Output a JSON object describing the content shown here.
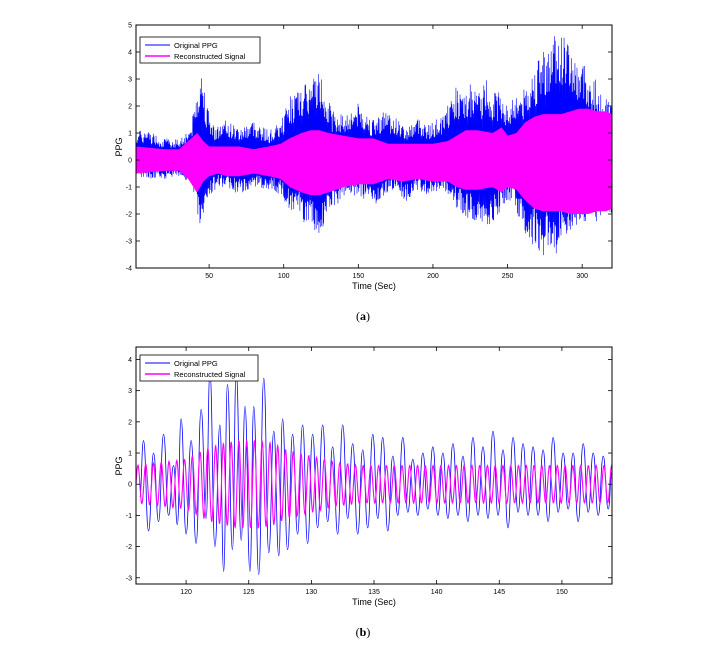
{
  "chart_data": [
    {
      "type": "line",
      "caption_letter": "a",
      "xlabel": "Time (Sec)",
      "ylabel": "PPG",
      "xlim": [
        1,
        320
      ],
      "ylim": [
        -4,
        5
      ],
      "xticks": [
        50,
        100,
        150,
        200,
        250,
        300
      ],
      "yticks": [
        -4,
        -3,
        -2,
        -1,
        0,
        1,
        2,
        3,
        4,
        5
      ],
      "grid": false,
      "legend_position": "top-left",
      "series": [
        {
          "name": "Original PPG",
          "color": "#0000ff",
          "envelope_time": [
            1,
            10,
            20,
            30,
            38,
            42,
            44,
            46,
            48,
            52,
            56,
            62,
            70,
            80,
            90,
            98,
            104,
            110,
            114,
            118,
            122,
            126,
            132,
            140,
            150,
            160,
            168,
            175,
            182,
            190,
            198,
            206,
            212,
            216,
            220,
            226,
            232,
            236,
            240,
            246,
            250,
            254,
            258,
            262,
            266,
            270,
            274,
            278,
            282,
            286,
            290,
            294,
            298,
            302,
            306,
            310,
            314,
            320
          ],
          "upper": [
            1.1,
            1.1,
            0.8,
            0.8,
            1.3,
            2.7,
            3.5,
            3.2,
            2.2,
            1.4,
            1.3,
            1.5,
            1.2,
            1.5,
            1.1,
            1.4,
            2.4,
            2.6,
            2.8,
            2.9,
            3.4,
            3.1,
            1.9,
            1.7,
            2.1,
            1.5,
            1.9,
            1.6,
            1.2,
            1.6,
            1.3,
            1.7,
            2.2,
            2.8,
            2.3,
            2.9,
            2.5,
            3.1,
            2.5,
            2.6,
            1.9,
            2.5,
            2.5,
            2.8,
            3.2,
            3.6,
            4.2,
            4.0,
            5.0,
            4.6,
            4.6,
            3.9,
            3.5,
            3.7,
            2.8,
            3.1,
            2.5,
            2.2
          ],
          "lower": [
            -0.6,
            -0.7,
            -0.7,
            -0.6,
            -0.9,
            -1.9,
            -2.6,
            -2.3,
            -1.6,
            -1.2,
            -1.0,
            -1.0,
            -1.3,
            -1.0,
            -1.1,
            -1.3,
            -2.0,
            -2.1,
            -2.4,
            -2.7,
            -2.9,
            -2.6,
            -1.8,
            -1.5,
            -1.3,
            -1.8,
            -1.4,
            -1.0,
            -1.6,
            -1.1,
            -1.4,
            -1.1,
            -1.5,
            -1.8,
            -2.0,
            -2.3,
            -2.2,
            -2.5,
            -2.3,
            -1.9,
            -1.6,
            -1.4,
            -2.4,
            -2.8,
            -3.1,
            -3.3,
            -3.6,
            -3.3,
            -3.5,
            -3.2,
            -2.9,
            -2.6,
            -2.3,
            -2.3,
            -2.1,
            -2.4,
            -2.1,
            -2.0
          ]
        },
        {
          "name": "Reconstructed Signal",
          "color": "#ff00ff",
          "envelope_time": [
            1,
            20,
            30,
            36,
            42,
            46,
            50,
            56,
            62,
            70,
            80,
            90,
            98,
            104,
            112,
            118,
            124,
            130,
            140,
            150,
            160,
            170,
            180,
            190,
            200,
            210,
            216,
            222,
            230,
            240,
            246,
            250,
            256,
            262,
            268,
            274,
            280,
            286,
            292,
            298,
            304,
            310,
            316,
            320
          ],
          "upper": [
            0.5,
            0.4,
            0.4,
            0.7,
            1.0,
            0.7,
            0.5,
            0.5,
            0.5,
            0.5,
            0.4,
            0.5,
            0.6,
            0.8,
            1.0,
            1.1,
            1.1,
            1.0,
            0.9,
            0.8,
            0.8,
            0.6,
            0.6,
            0.6,
            0.6,
            0.7,
            0.9,
            1.1,
            1.1,
            1.0,
            1.2,
            0.9,
            1.0,
            1.4,
            1.6,
            1.7,
            1.7,
            1.7,
            1.8,
            1.9,
            1.9,
            1.8,
            1.8,
            1.7
          ],
          "lower": [
            -0.5,
            -0.4,
            -0.4,
            -0.7,
            -1.2,
            -0.8,
            -0.6,
            -0.5,
            -0.6,
            -0.6,
            -0.5,
            -0.6,
            -0.7,
            -1.0,
            -1.2,
            -1.3,
            -1.3,
            -1.2,
            -1.0,
            -0.9,
            -0.9,
            -0.7,
            -0.8,
            -0.7,
            -0.8,
            -0.8,
            -1.0,
            -1.1,
            -1.1,
            -1.0,
            -1.2,
            -1.0,
            -1.1,
            -1.5,
            -1.8,
            -1.9,
            -1.9,
            -1.9,
            -2.0,
            -2.0,
            -2.0,
            -1.9,
            -1.9,
            -1.8
          ]
        }
      ]
    },
    {
      "type": "line",
      "caption_letter": "b",
      "xlabel": "Time (Sec)",
      "ylabel": "PPG",
      "xlim": [
        116,
        154
      ],
      "ylim": [
        -3.2,
        4.4
      ],
      "xticks": [
        120,
        125,
        130,
        135,
        140,
        145,
        150
      ],
      "yticks": [
        -3,
        -2,
        -1,
        0,
        1,
        2,
        3,
        4
      ],
      "grid": false,
      "legend_position": "top-left",
      "series": [
        {
          "name": "Original PPG",
          "color": "#0000ff",
          "peaks": [
            [
              116.3,
              -0.4
            ],
            [
              116.6,
              1.4
            ],
            [
              117.0,
              -1.5
            ],
            [
              117.4,
              1.0
            ],
            [
              117.8,
              -1.2
            ],
            [
              118.2,
              1.6
            ],
            [
              118.6,
              -1.0
            ],
            [
              119.0,
              0.6
            ],
            [
              119.3,
              -1.3
            ],
            [
              119.6,
              2.1
            ],
            [
              120.0,
              -1.6
            ],
            [
              120.4,
              1.4
            ],
            [
              120.8,
              -1.9
            ],
            [
              121.2,
              2.4
            ],
            [
              121.6,
              -1.1
            ],
            [
              121.9,
              3.6
            ],
            [
              122.3,
              -2.0
            ],
            [
              122.7,
              1.9
            ],
            [
              123.0,
              -2.8
            ],
            [
              123.3,
              3.2
            ],
            [
              123.7,
              -2.1
            ],
            [
              124.0,
              3.6
            ],
            [
              124.4,
              -1.8
            ],
            [
              124.7,
              2.5
            ],
            [
              125.1,
              -2.8
            ],
            [
              125.4,
              2.5
            ],
            [
              125.8,
              -2.9
            ],
            [
              126.2,
              3.4
            ],
            [
              126.6,
              -2.2
            ],
            [
              127.0,
              1.7
            ],
            [
              127.4,
              -2.3
            ],
            [
              127.7,
              2.1
            ],
            [
              128.1,
              -2.1
            ],
            [
              128.5,
              1.6
            ],
            [
              128.9,
              -1.6
            ],
            [
              129.3,
              1.9
            ],
            [
              129.7,
              -1.9
            ],
            [
              130.1,
              1.6
            ],
            [
              130.5,
              -1.4
            ],
            [
              130.9,
              1.9
            ],
            [
              131.3,
              -1.2
            ],
            [
              131.7,
              1.2
            ],
            [
              132.1,
              -1.6
            ],
            [
              132.5,
              1.9
            ],
            [
              132.9,
              -1.1
            ],
            [
              133.3,
              1.3
            ],
            [
              133.7,
              -1.6
            ],
            [
              134.1,
              1.1
            ],
            [
              134.5,
              -1.4
            ],
            [
              134.9,
              1.6
            ],
            [
              135.3,
              -1.1
            ],
            [
              135.7,
              1.5
            ],
            [
              136.1,
              -1.5
            ],
            [
              136.5,
              0.9
            ],
            [
              136.9,
              -1.0
            ],
            [
              137.3,
              1.5
            ],
            [
              137.7,
              -0.9
            ],
            [
              138.1,
              0.8
            ],
            [
              138.5,
              -1.0
            ],
            [
              138.9,
              1.0
            ],
            [
              139.3,
              -0.8
            ],
            [
              139.7,
              1.2
            ],
            [
              140.1,
              -1.0
            ],
            [
              140.5,
              1.0
            ],
            [
              140.9,
              -1.1
            ],
            [
              141.3,
              1.3
            ],
            [
              141.7,
              -1.0
            ],
            [
              142.1,
              0.9
            ],
            [
              142.5,
              -1.2
            ],
            [
              142.9,
              1.5
            ],
            [
              143.3,
              -1.0
            ],
            [
              143.7,
              1.2
            ],
            [
              144.1,
              -1.1
            ],
            [
              144.5,
              1.7
            ],
            [
              144.9,
              -1.0
            ],
            [
              145.3,
              1.1
            ],
            [
              145.7,
              -1.4
            ],
            [
              146.1,
              1.5
            ],
            [
              146.5,
              -0.9
            ],
            [
              146.9,
              1.3
            ],
            [
              147.3,
              -1.0
            ],
            [
              147.7,
              1.2
            ],
            [
              148.1,
              -1.0
            ],
            [
              148.5,
              1.1
            ],
            [
              148.9,
              -1.2
            ],
            [
              149.3,
              1.5
            ],
            [
              149.7,
              -0.9
            ],
            [
              150.1,
              1.0
            ],
            [
              150.5,
              -0.8
            ],
            [
              150.9,
              1.0
            ],
            [
              151.3,
              -1.2
            ],
            [
              151.7,
              1.3
            ],
            [
              152.1,
              -0.9
            ],
            [
              152.5,
              1.0
            ],
            [
              152.9,
              -1.0
            ],
            [
              153.3,
              0.9
            ],
            [
              153.7,
              -0.8
            ],
            [
              154.0,
              0.4
            ]
          ]
        },
        {
          "name": "Reconstructed Signal",
          "color": "#ff00ff",
          "envelope_time": [
            116,
            118,
            120,
            121,
            122,
            123,
            124,
            125,
            126,
            127,
            128,
            129,
            130,
            132,
            134,
            136,
            138,
            140,
            142,
            144,
            146,
            148,
            150,
            152,
            154
          ],
          "upper": [
            0.6,
            0.7,
            0.8,
            1.0,
            1.2,
            1.3,
            1.4,
            1.4,
            1.4,
            1.3,
            1.1,
            1.0,
            0.9,
            0.7,
            0.6,
            0.6,
            0.6,
            0.6,
            0.6,
            0.6,
            0.6,
            0.6,
            0.6,
            0.6,
            0.6
          ],
          "lower": [
            -0.6,
            -0.7,
            -0.8,
            -1.0,
            -1.2,
            -1.3,
            -1.4,
            -1.4,
            -1.3,
            -1.2,
            -1.1,
            -1.0,
            -0.9,
            -0.7,
            -0.6,
            -0.6,
            -0.6,
            -0.6,
            -0.6,
            -0.6,
            -0.6,
            -0.6,
            -0.6,
            -0.6,
            -0.6
          ],
          "period_sec": 0.62
        }
      ]
    }
  ]
}
